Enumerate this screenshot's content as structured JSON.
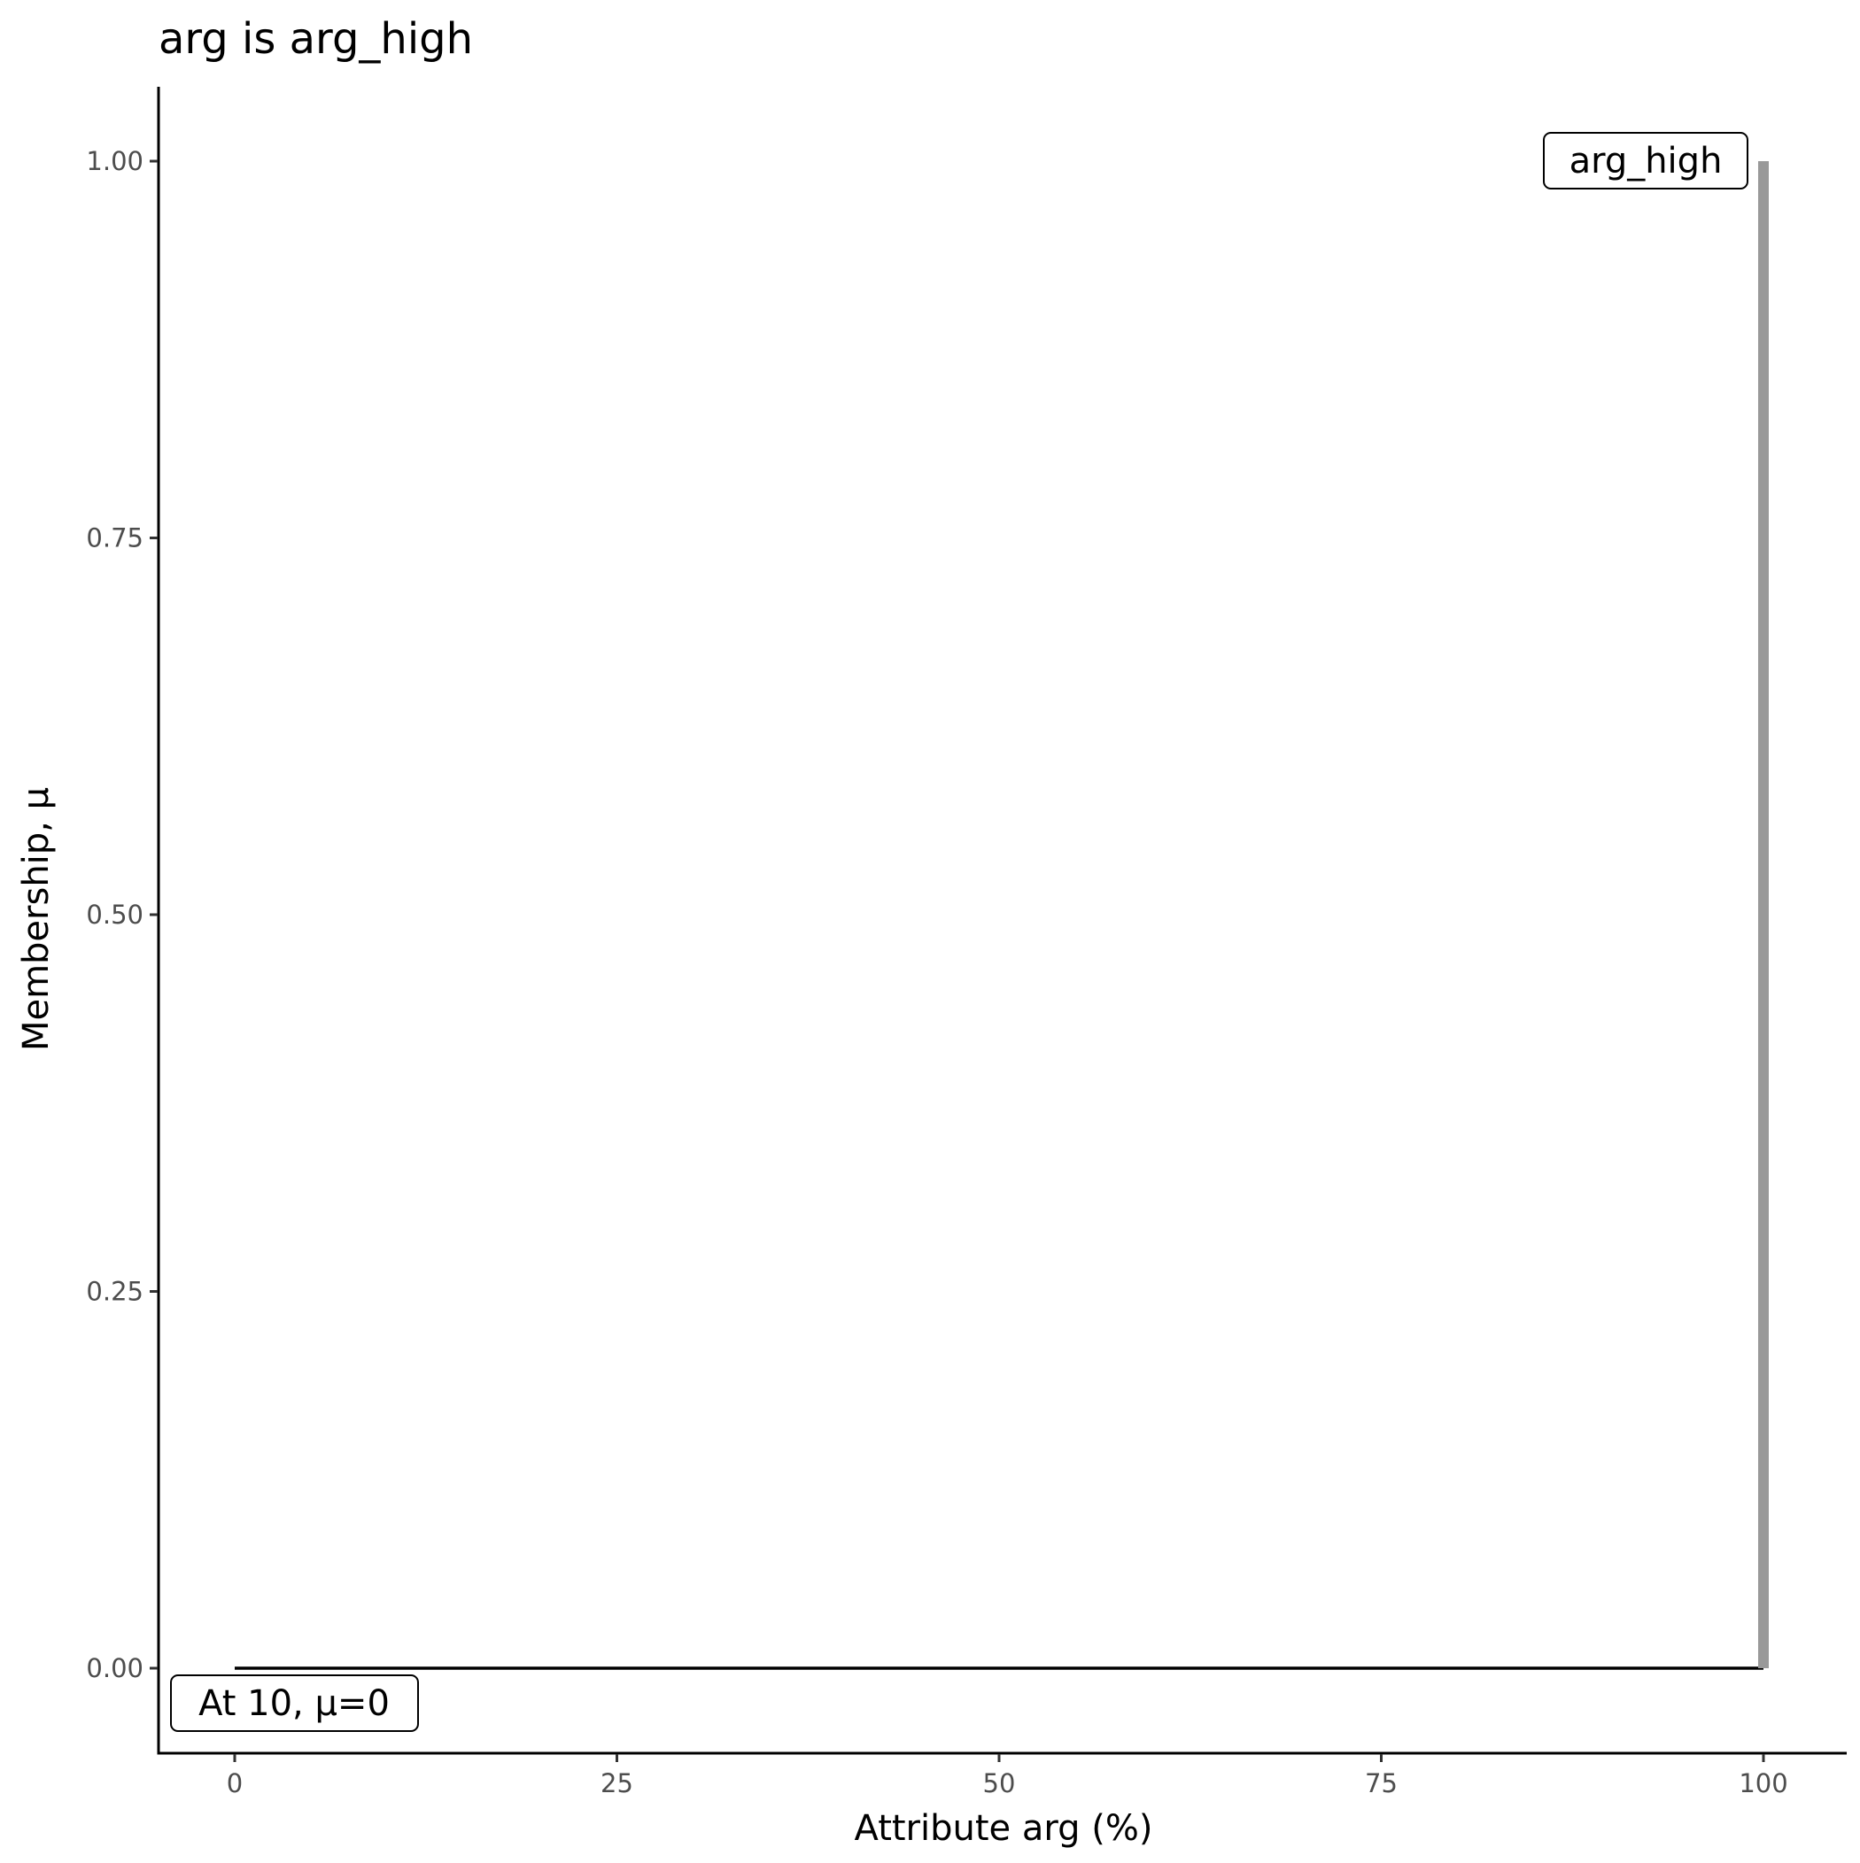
{
  "chart_data": {
    "type": "line",
    "title": "arg is arg_high",
    "xlabel": "Attribute arg (%)",
    "ylabel": "Membership, μ",
    "xlim": [
      -5,
      105
    ],
    "ylim": [
      -0.05,
      1.05
    ],
    "xticks": [
      0,
      25,
      50,
      75,
      100
    ],
    "xtick_labels": [
      "0",
      "25",
      "50",
      "75",
      "100"
    ],
    "yticks": [
      0,
      0.25,
      0.5,
      0.75,
      1
    ],
    "ytick_labels": [
      "0.00",
      "0.25",
      "0.50",
      "0.75",
      "1.00"
    ],
    "grid": false,
    "series": [
      {
        "color": "#000000",
        "x": [
          0,
          100
        ],
        "y": [
          0,
          0
        ]
      },
      {
        "color": "#999999",
        "x": [
          100,
          100
        ],
        "y": [
          0,
          1
        ]
      }
    ],
    "annotations": [
      {
        "text": "arg_high",
        "x": 100,
        "y": 1,
        "anchor": "right"
      },
      {
        "text": "At 10, μ=0",
        "x": 0,
        "y": 0,
        "anchor": "below"
      }
    ]
  }
}
